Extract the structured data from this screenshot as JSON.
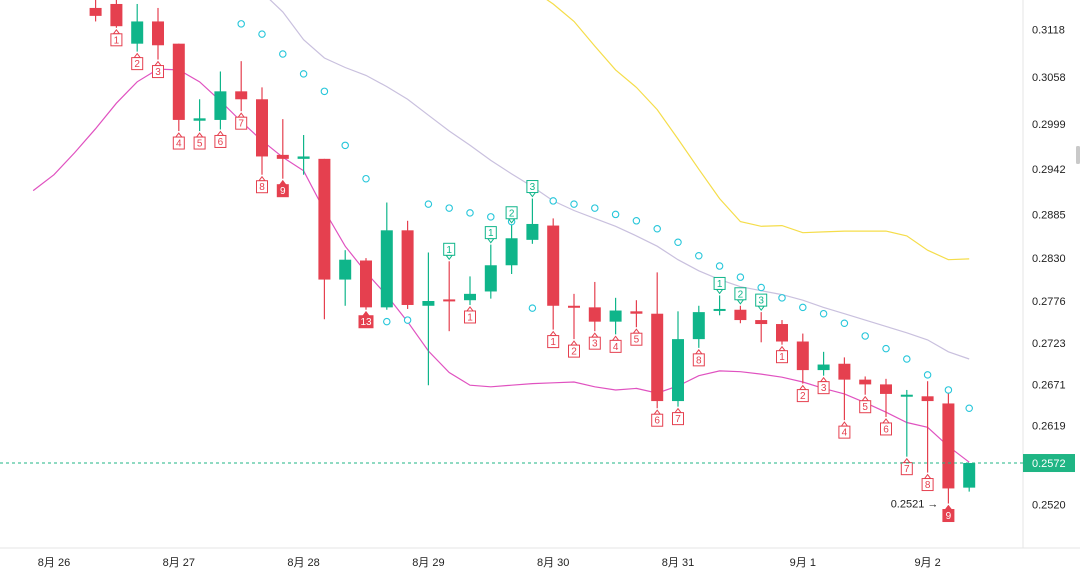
{
  "chart_data": {
    "type": "candlestick",
    "colors": {
      "up": "#0fb58a",
      "down": "#e5404f",
      "sar": "#26c6da",
      "ma_pink": "#e052c0",
      "ma_lavender": "#c9c0de",
      "ma_yellow": "#f5dd4a",
      "current_price_line": "#1fb584",
      "last_price_badge": "#1fb584"
    },
    "ylim": [
      0.2465,
      0.3155
    ],
    "y_ticks": [
      0.3118,
      0.3058,
      0.2999,
      0.2942,
      0.2885,
      0.283,
      0.2776,
      0.2723,
      0.2671,
      0.2619,
      0.252
    ],
    "x_ticks": [
      {
        "label": "8月 26",
        "i": -5
      },
      {
        "label": "8月 27",
        "i": 1
      },
      {
        "label": "8月 28",
        "i": 7
      },
      {
        "label": "8月 29",
        "i": 13
      },
      {
        "label": "8月 30",
        "i": 19
      },
      {
        "label": "8月 31",
        "i": 25
      },
      {
        "label": "9月 1",
        "i": 31
      },
      {
        "label": "9月 2",
        "i": 37
      }
    ],
    "candles": [
      {
        "i": -3,
        "o": 0.3145,
        "h": 0.3165,
        "l": 0.3128,
        "c": 0.3135
      },
      {
        "i": -2,
        "o": 0.315,
        "h": 0.316,
        "l": 0.312,
        "c": 0.3122
      },
      {
        "i": -1,
        "o": 0.31,
        "h": 0.315,
        "l": 0.309,
        "c": 0.3128
      },
      {
        "i": 0,
        "o": 0.3128,
        "h": 0.3145,
        "l": 0.308,
        "c": 0.3098
      },
      {
        "i": 1,
        "o": 0.31,
        "h": 0.31,
        "l": 0.299,
        "c": 0.3004
      },
      {
        "i": 2,
        "o": 0.3003,
        "h": 0.303,
        "l": 0.299,
        "c": 0.3006
      },
      {
        "i": 3,
        "o": 0.3004,
        "h": 0.3065,
        "l": 0.2992,
        "c": 0.304
      },
      {
        "i": 4,
        "o": 0.304,
        "h": 0.3078,
        "l": 0.3015,
        "c": 0.303
      },
      {
        "i": 5,
        "o": 0.303,
        "h": 0.3045,
        "l": 0.2935,
        "c": 0.2958
      },
      {
        "i": 6,
        "o": 0.296,
        "h": 0.3005,
        "l": 0.293,
        "c": 0.2955
      },
      {
        "i": 7,
        "o": 0.2955,
        "h": 0.2985,
        "l": 0.2935,
        "c": 0.2958
      },
      {
        "i": 8,
        "o": 0.2955,
        "h": 0.2955,
        "l": 0.2753,
        "c": 0.2803
      },
      {
        "i": 9,
        "o": 0.2803,
        "h": 0.284,
        "l": 0.277,
        "c": 0.2828
      },
      {
        "i": 10,
        "o": 0.2827,
        "h": 0.283,
        "l": 0.2765,
        "c": 0.2768
      },
      {
        "i": 11,
        "o": 0.2768,
        "h": 0.29,
        "l": 0.2765,
        "c": 0.2865
      },
      {
        "i": 12,
        "o": 0.2865,
        "h": 0.2877,
        "l": 0.2766,
        "c": 0.2771
      },
      {
        "i": 13,
        "o": 0.277,
        "h": 0.2837,
        "l": 0.267,
        "c": 0.2776
      },
      {
        "i": 14,
        "o": 0.2778,
        "h": 0.2826,
        "l": 0.2738,
        "c": 0.2776
      },
      {
        "i": 15,
        "o": 0.2777,
        "h": 0.2807,
        "l": 0.2771,
        "c": 0.2785
      },
      {
        "i": 16,
        "o": 0.2788,
        "h": 0.2847,
        "l": 0.2779,
        "c": 0.2821
      },
      {
        "i": 17,
        "o": 0.2821,
        "h": 0.2872,
        "l": 0.281,
        "c": 0.2855
      },
      {
        "i": 18,
        "o": 0.2853,
        "h": 0.2905,
        "l": 0.2848,
        "c": 0.2873
      },
      {
        "i": 19,
        "o": 0.2871,
        "h": 0.288,
        "l": 0.274,
        "c": 0.277
      },
      {
        "i": 20,
        "o": 0.277,
        "h": 0.2785,
        "l": 0.2728,
        "c": 0.2768
      },
      {
        "i": 21,
        "o": 0.2768,
        "h": 0.28,
        "l": 0.2738,
        "c": 0.275
      },
      {
        "i": 22,
        "o": 0.275,
        "h": 0.278,
        "l": 0.2734,
        "c": 0.2764
      },
      {
        "i": 23,
        "o": 0.2763,
        "h": 0.2777,
        "l": 0.2743,
        "c": 0.276
      },
      {
        "i": 24,
        "o": 0.276,
        "h": 0.2812,
        "l": 0.2641,
        "c": 0.265
      },
      {
        "i": 25,
        "o": 0.265,
        "h": 0.2763,
        "l": 0.2643,
        "c": 0.2728
      },
      {
        "i": 26,
        "o": 0.2728,
        "h": 0.277,
        "l": 0.2717,
        "c": 0.2762
      },
      {
        "i": 27,
        "o": 0.2764,
        "h": 0.2783,
        "l": 0.2758,
        "c": 0.2766
      },
      {
        "i": 28,
        "o": 0.2765,
        "h": 0.277,
        "l": 0.2748,
        "c": 0.2752
      },
      {
        "i": 29,
        "o": 0.2752,
        "h": 0.2762,
        "l": 0.2724,
        "c": 0.2747
      },
      {
        "i": 30,
        "o": 0.2747,
        "h": 0.2752,
        "l": 0.2721,
        "c": 0.2725
      },
      {
        "i": 31,
        "o": 0.2725,
        "h": 0.2735,
        "l": 0.2672,
        "c": 0.2689
      },
      {
        "i": 32,
        "o": 0.2689,
        "h": 0.2712,
        "l": 0.2682,
        "c": 0.2696
      },
      {
        "i": 33,
        "o": 0.2697,
        "h": 0.2705,
        "l": 0.2626,
        "c": 0.2677
      },
      {
        "i": 34,
        "o": 0.2677,
        "h": 0.2681,
        "l": 0.2658,
        "c": 0.2671
      },
      {
        "i": 35,
        "o": 0.2671,
        "h": 0.2678,
        "l": 0.263,
        "c": 0.2659
      },
      {
        "i": 36,
        "o": 0.2658,
        "h": 0.2664,
        "l": 0.258,
        "c": 0.2658
      },
      {
        "i": 37,
        "o": 0.2656,
        "h": 0.2675,
        "l": 0.256,
        "c": 0.265
      },
      {
        "i": 38,
        "o": 0.2647,
        "h": 0.2665,
        "l": 0.2521,
        "c": 0.254
      },
      {
        "i": 39,
        "o": 0.2541,
        "h": 0.2572,
        "l": 0.2536,
        "c": 0.2572
      }
    ],
    "sar": [
      {
        "i": 4,
        "v": 0.3125
      },
      {
        "i": 5,
        "v": 0.3112
      },
      {
        "i": 6,
        "v": 0.3087
      },
      {
        "i": 7,
        "v": 0.3062
      },
      {
        "i": 8,
        "v": 0.304
      },
      {
        "i": 9,
        "v": 0.2972
      },
      {
        "i": 10,
        "v": 0.293
      },
      {
        "i": 11,
        "v": 0.275
      },
      {
        "i": 12,
        "v": 0.2752
      },
      {
        "i": 13,
        "v": 0.2898
      },
      {
        "i": 14,
        "v": 0.2893
      },
      {
        "i": 15,
        "v": 0.2887
      },
      {
        "i": 16,
        "v": 0.2882
      },
      {
        "i": 17,
        "v": 0.2876
      },
      {
        "i": 18,
        "v": 0.2767
      },
      {
        "i": 19,
        "v": 0.2902
      },
      {
        "i": 20,
        "v": 0.2898
      },
      {
        "i": 21,
        "v": 0.2893
      },
      {
        "i": 22,
        "v": 0.2885
      },
      {
        "i": 23,
        "v": 0.2877
      },
      {
        "i": 24,
        "v": 0.2867
      },
      {
        "i": 25,
        "v": 0.285
      },
      {
        "i": 26,
        "v": 0.2833
      },
      {
        "i": 27,
        "v": 0.282
      },
      {
        "i": 28,
        "v": 0.2806
      },
      {
        "i": 29,
        "v": 0.2793
      },
      {
        "i": 30,
        "v": 0.278
      },
      {
        "i": 31,
        "v": 0.2768
      },
      {
        "i": 32,
        "v": 0.276
      },
      {
        "i": 33,
        "v": 0.2748
      },
      {
        "i": 34,
        "v": 0.2732
      },
      {
        "i": 35,
        "v": 0.2716
      },
      {
        "i": 36,
        "v": 0.2703
      },
      {
        "i": 37,
        "v": 0.2683
      },
      {
        "i": 38,
        "v": 0.2664
      },
      {
        "i": 39,
        "v": 0.2641
      }
    ],
    "ma_pink": [
      {
        "i": -6,
        "v": 0.2915
      },
      {
        "i": -5,
        "v": 0.2935
      },
      {
        "i": -4,
        "v": 0.2963
      },
      {
        "i": -3,
        "v": 0.2993
      },
      {
        "i": -2,
        "v": 0.3025
      },
      {
        "i": -1,
        "v": 0.3052
      },
      {
        "i": 0,
        "v": 0.3068
      },
      {
        "i": 1,
        "v": 0.3067
      },
      {
        "i": 2,
        "v": 0.3052
      },
      {
        "i": 3,
        "v": 0.3028
      },
      {
        "i": 4,
        "v": 0.3002
      },
      {
        "i": 5,
        "v": 0.2978
      },
      {
        "i": 6,
        "v": 0.2957
      },
      {
        "i": 7,
        "v": 0.294
      },
      {
        "i": 8,
        "v": 0.289
      },
      {
        "i": 9,
        "v": 0.2845
      },
      {
        "i": 10,
        "v": 0.2812
      },
      {
        "i": 11,
        "v": 0.2783
      },
      {
        "i": 12,
        "v": 0.275
      },
      {
        "i": 13,
        "v": 0.2713
      },
      {
        "i": 14,
        "v": 0.2686
      },
      {
        "i": 15,
        "v": 0.267
      },
      {
        "i": 16,
        "v": 0.2668
      },
      {
        "i": 17,
        "v": 0.267
      },
      {
        "i": 18,
        "v": 0.2672
      },
      {
        "i": 19,
        "v": 0.2673
      },
      {
        "i": 20,
        "v": 0.2674
      },
      {
        "i": 21,
        "v": 0.2668
      },
      {
        "i": 22,
        "v": 0.2664
      },
      {
        "i": 23,
        "v": 0.2666
      },
      {
        "i": 24,
        "v": 0.266
      },
      {
        "i": 25,
        "v": 0.2669
      },
      {
        "i": 26,
        "v": 0.2682
      },
      {
        "i": 27,
        "v": 0.2688
      },
      {
        "i": 28,
        "v": 0.2687
      },
      {
        "i": 29,
        "v": 0.2684
      },
      {
        "i": 30,
        "v": 0.268
      },
      {
        "i": 31,
        "v": 0.2674
      },
      {
        "i": 32,
        "v": 0.2666
      },
      {
        "i": 33,
        "v": 0.2659
      },
      {
        "i": 34,
        "v": 0.2648
      },
      {
        "i": 35,
        "v": 0.2636
      },
      {
        "i": 36,
        "v": 0.2623
      },
      {
        "i": 37,
        "v": 0.2617
      },
      {
        "i": 38,
        "v": 0.2593
      },
      {
        "i": 39,
        "v": 0.2573
      }
    ],
    "ma_lavender": [
      {
        "i": 5,
        "v": 0.3165
      },
      {
        "i": 6,
        "v": 0.314
      },
      {
        "i": 7,
        "v": 0.3105
      },
      {
        "i": 8,
        "v": 0.3082
      },
      {
        "i": 9,
        "v": 0.307
      },
      {
        "i": 10,
        "v": 0.306
      },
      {
        "i": 11,
        "v": 0.3046
      },
      {
        "i": 12,
        "v": 0.303
      },
      {
        "i": 13,
        "v": 0.301
      },
      {
        "i": 14,
        "v": 0.299
      },
      {
        "i": 15,
        "v": 0.2972
      },
      {
        "i": 16,
        "v": 0.2953
      },
      {
        "i": 17,
        "v": 0.2936
      },
      {
        "i": 18,
        "v": 0.292
      },
      {
        "i": 19,
        "v": 0.2902
      },
      {
        "i": 20,
        "v": 0.289
      },
      {
        "i": 21,
        "v": 0.288
      },
      {
        "i": 22,
        "v": 0.287
      },
      {
        "i": 23,
        "v": 0.2858
      },
      {
        "i": 24,
        "v": 0.2845
      },
      {
        "i": 25,
        "v": 0.2828
      },
      {
        "i": 26,
        "v": 0.2814
      },
      {
        "i": 27,
        "v": 0.2803
      },
      {
        "i": 28,
        "v": 0.2794
      },
      {
        "i": 29,
        "v": 0.2789
      },
      {
        "i": 30,
        "v": 0.2784
      },
      {
        "i": 31,
        "v": 0.2777
      },
      {
        "i": 32,
        "v": 0.2768
      },
      {
        "i": 33,
        "v": 0.276
      },
      {
        "i": 34,
        "v": 0.2752
      },
      {
        "i": 35,
        "v": 0.2744
      },
      {
        "i": 36,
        "v": 0.2736
      },
      {
        "i": 37,
        "v": 0.2727
      },
      {
        "i": 38,
        "v": 0.2712
      },
      {
        "i": 39,
        "v": 0.2703
      }
    ],
    "ma_yellow": [
      {
        "i": 18,
        "v": 0.3168
      },
      {
        "i": 19,
        "v": 0.315
      },
      {
        "i": 20,
        "v": 0.3128
      },
      {
        "i": 21,
        "v": 0.3097
      },
      {
        "i": 22,
        "v": 0.3067
      },
      {
        "i": 23,
        "v": 0.3045
      },
      {
        "i": 24,
        "v": 0.3017
      },
      {
        "i": 25,
        "v": 0.298
      },
      {
        "i": 26,
        "v": 0.2942
      },
      {
        "i": 27,
        "v": 0.2905
      },
      {
        "i": 28,
        "v": 0.2876
      },
      {
        "i": 29,
        "v": 0.287
      },
      {
        "i": 30,
        "v": 0.2871
      },
      {
        "i": 31,
        "v": 0.2862
      },
      {
        "i": 32,
        "v": 0.2863
      },
      {
        "i": 33,
        "v": 0.2864
      },
      {
        "i": 34,
        "v": 0.2864
      },
      {
        "i": 35,
        "v": 0.2864
      },
      {
        "i": 36,
        "v": 0.2858
      },
      {
        "i": 37,
        "v": 0.284
      },
      {
        "i": 38,
        "v": 0.2828
      },
      {
        "i": 39,
        "v": 0.2829
      }
    ],
    "seq_markers": [
      {
        "i": -2,
        "label": "1",
        "pos": "below",
        "kind": "outline-red"
      },
      {
        "i": -1,
        "label": "2",
        "pos": "below",
        "kind": "outline-red"
      },
      {
        "i": 0,
        "label": "3",
        "pos": "below",
        "kind": "outline-red"
      },
      {
        "i": 1,
        "label": "4",
        "pos": "below",
        "kind": "outline-red"
      },
      {
        "i": 2,
        "label": "5",
        "pos": "below",
        "kind": "outline-red"
      },
      {
        "i": 3,
        "label": "6",
        "pos": "below",
        "kind": "outline-red"
      },
      {
        "i": 4,
        "label": "7",
        "pos": "below",
        "kind": "outline-red"
      },
      {
        "i": 5,
        "label": "8",
        "pos": "below",
        "kind": "outline-red"
      },
      {
        "i": 6,
        "label": "9",
        "pos": "below",
        "kind": "filled-red"
      },
      {
        "i": 10,
        "label": "13",
        "pos": "below",
        "kind": "filled-red"
      },
      {
        "i": 15,
        "label": "1",
        "pos": "below",
        "kind": "outline-red"
      },
      {
        "i": 14,
        "label": "1",
        "pos": "above",
        "kind": "outline-green"
      },
      {
        "i": 16,
        "label": "1",
        "pos": "above",
        "kind": "outline-green"
      },
      {
        "i": 17,
        "label": "2",
        "pos": "above",
        "kind": "outline-green"
      },
      {
        "i": 18,
        "label": "3",
        "pos": "above",
        "kind": "outline-green"
      },
      {
        "i": 19,
        "label": "1",
        "pos": "below",
        "kind": "outline-red"
      },
      {
        "i": 20,
        "label": "2",
        "pos": "below",
        "kind": "outline-red"
      },
      {
        "i": 21,
        "label": "3",
        "pos": "below",
        "kind": "outline-red"
      },
      {
        "i": 22,
        "label": "4",
        "pos": "below",
        "kind": "outline-red"
      },
      {
        "i": 23,
        "label": "5",
        "pos": "below",
        "kind": "outline-red"
      },
      {
        "i": 24,
        "label": "6",
        "pos": "below",
        "kind": "outline-red"
      },
      {
        "i": 25,
        "label": "7",
        "pos": "below",
        "kind": "outline-red"
      },
      {
        "i": 26,
        "label": "8",
        "pos": "below",
        "kind": "outline-red"
      },
      {
        "i": 27,
        "label": "1",
        "pos": "above",
        "kind": "outline-green"
      },
      {
        "i": 28,
        "label": "2",
        "pos": "above",
        "kind": "outline-green"
      },
      {
        "i": 29,
        "label": "3",
        "pos": "above",
        "kind": "outline-green"
      },
      {
        "i": 30,
        "label": "1",
        "pos": "below",
        "kind": "outline-red"
      },
      {
        "i": 31,
        "label": "2",
        "pos": "below",
        "kind": "outline-red"
      },
      {
        "i": 32,
        "label": "3",
        "pos": "below",
        "kind": "outline-red"
      },
      {
        "i": 33,
        "label": "4",
        "pos": "below",
        "kind": "outline-red"
      },
      {
        "i": 34,
        "label": "5",
        "pos": "below",
        "kind": "outline-red"
      },
      {
        "i": 35,
        "label": "6",
        "pos": "below",
        "kind": "outline-red"
      },
      {
        "i": 36,
        "label": "7",
        "pos": "below",
        "kind": "outline-red"
      },
      {
        "i": 37,
        "label": "8",
        "pos": "below",
        "kind": "outline-red"
      },
      {
        "i": 38,
        "label": "9",
        "pos": "below",
        "kind": "filled-red"
      }
    ],
    "current_price": 0.2572,
    "current_price_label": "0.2572",
    "low_annotation": {
      "label": "0.2521",
      "price": 0.2521,
      "i": 38,
      "arrow": "→"
    }
  }
}
